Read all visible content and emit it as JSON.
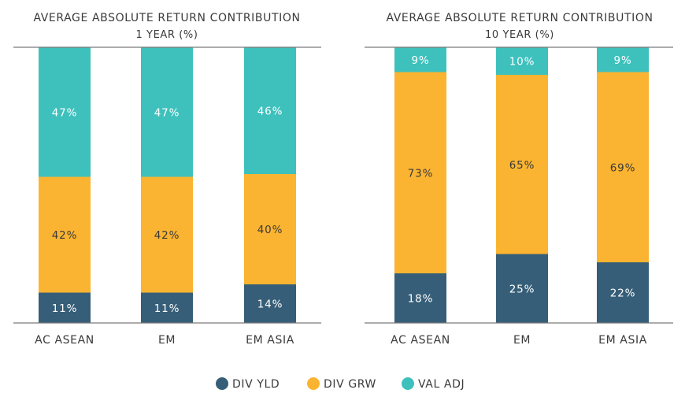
{
  "chart_data": [
    {
      "type": "bar",
      "stacked": true,
      "title": "AVERAGE ABSOLUTE RETURN CONTRIBUTION",
      "subtitle": "1 YEAR (%)",
      "categories": [
        "AC ASEAN",
        "EM",
        "EM ASIA"
      ],
      "ylim": [
        0,
        100
      ],
      "series": [
        {
          "name": "DIV YLD",
          "values": [
            11,
            11,
            14
          ],
          "labels": [
            "11%",
            "11%",
            "14%"
          ]
        },
        {
          "name": "DIV GRW",
          "values": [
            42,
            42,
            40
          ],
          "labels": [
            "42%",
            "42%",
            "40%"
          ]
        },
        {
          "name": "VAL ADJ",
          "values": [
            47,
            47,
            46
          ],
          "labels": [
            "47%",
            "47%",
            "46%"
          ]
        }
      ]
    },
    {
      "type": "bar",
      "stacked": true,
      "title": "AVERAGE ABSOLUTE RETURN CONTRIBUTION",
      "subtitle": "10 YEAR (%)",
      "categories": [
        "AC ASEAN",
        "EM",
        "EM ASIA"
      ],
      "ylim": [
        0,
        100
      ],
      "series": [
        {
          "name": "DIV YLD",
          "values": [
            18,
            25,
            22
          ],
          "labels": [
            "18%",
            "25%",
            "22%"
          ]
        },
        {
          "name": "DIV GRW",
          "values": [
            73,
            65,
            69
          ],
          "labels": [
            "73%",
            "65%",
            "69%"
          ]
        },
        {
          "name": "VAL ADJ",
          "values": [
            9,
            10,
            9
          ],
          "labels": [
            "9%",
            "10%",
            "9%"
          ]
        }
      ]
    }
  ],
  "legend": {
    "position": "bottom",
    "items": [
      {
        "name": "DIV YLD",
        "color": "#365e78"
      },
      {
        "name": "DIV GRW",
        "color": "#fbb431"
      },
      {
        "name": "VAL ADJ",
        "color": "#3ec1bd"
      }
    ]
  },
  "colors": {
    "DIV YLD": "#365e78",
    "DIV GRW": "#fbb431",
    "VAL ADJ": "#3ec1bd",
    "label_light": "#ffffff",
    "label_dark": "#3a3a3a",
    "text": "#3a3a3a",
    "axis": "#7a7a7a"
  }
}
